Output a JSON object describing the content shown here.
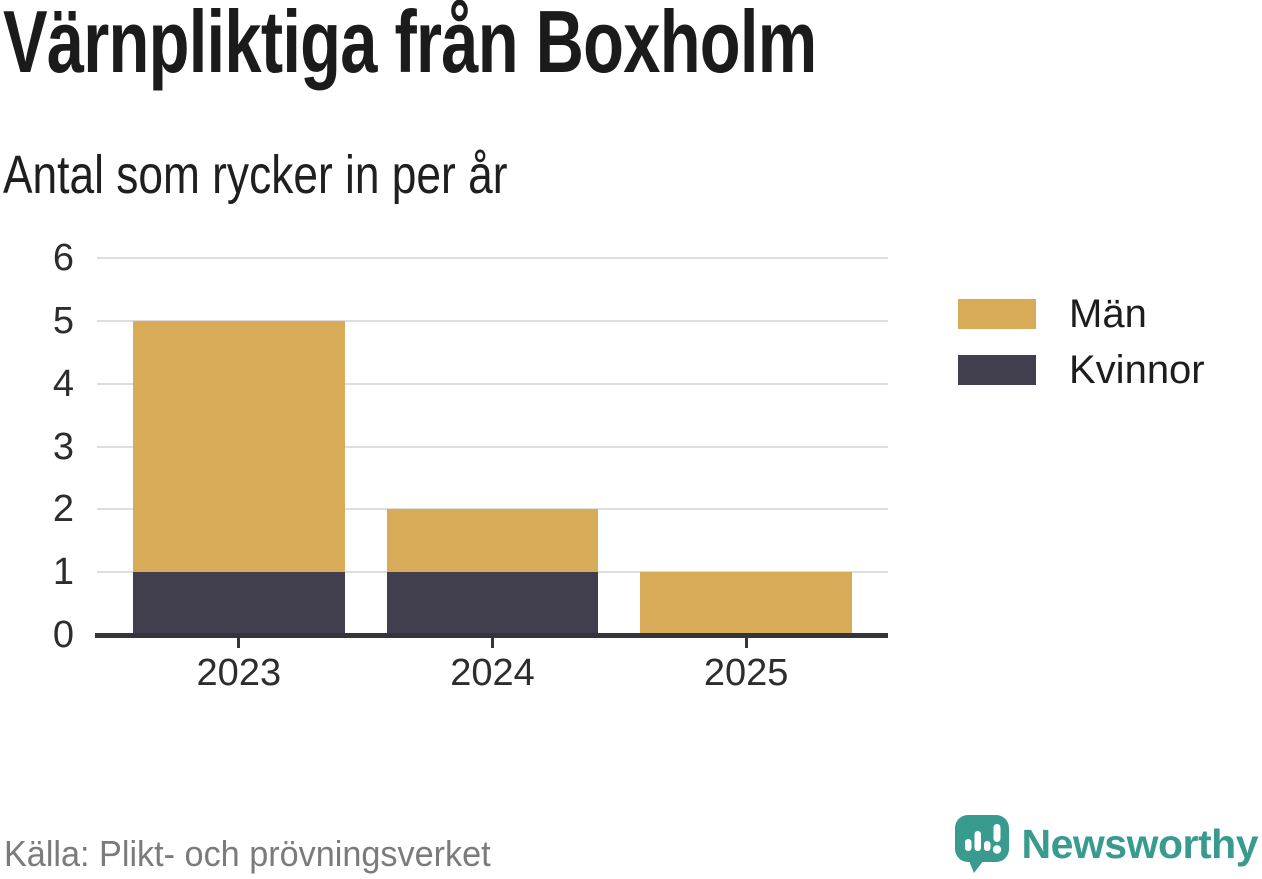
{
  "header": {
    "title": "Värnpliktiga från Boxholm",
    "subtitle": "Antal som rycker in per år"
  },
  "chart_data": {
    "type": "bar",
    "stacked": true,
    "title": "Värnpliktiga från Boxholm",
    "subtitle": "Antal som rycker in per år",
    "categories": [
      "2023",
      "2024",
      "2025"
    ],
    "series": [
      {
        "name": "Män",
        "color": "#d7ab58",
        "values": [
          4,
          1,
          1
        ]
      },
      {
        "name": "Kvinnor",
        "color": "#413f4d",
        "values": [
          1,
          1,
          0
        ]
      }
    ],
    "stack_bottom_to_top": [
      "Kvinnor",
      "Män"
    ],
    "totals": [
      5,
      2,
      1
    ],
    "xlabel": "",
    "ylabel": "",
    "ylim": [
      0,
      6
    ],
    "yticks": [
      0,
      1,
      2,
      3,
      4,
      5,
      6
    ],
    "grid": "horizontal",
    "legend_position": "right"
  },
  "footer": {
    "source": "Källa: Plikt- och prövningsverket",
    "brand": "Newsworthy"
  },
  "colors": {
    "men": "#d7ab58",
    "women": "#413f4d",
    "gridline": "#dedede",
    "axis": "#35343c",
    "tick_text": "#2d2d2d",
    "muted_text": "#7b7b7b",
    "brand_teal": "#389b8d"
  }
}
